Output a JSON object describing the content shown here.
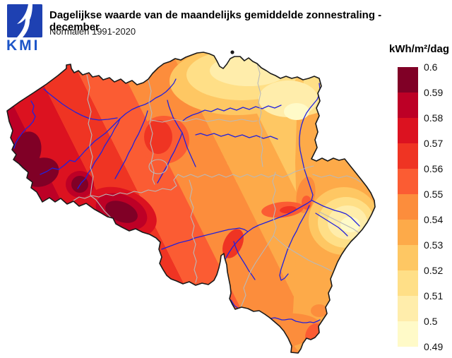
{
  "header": {
    "logo_text": "KMI",
    "title": "Dagelijkse waarde van de maandelijks gemiddelde zonnestraling - december",
    "subtitle": "Normalen 1991-2020"
  },
  "legend": {
    "title": "kWh/m²/dag",
    "tick_labels": [
      "0.6",
      "0.59",
      "0.58",
      "0.57",
      "0.56",
      "0.55",
      "0.54",
      "0.53",
      "0.52",
      "0.51",
      "0.5",
      "0.49"
    ],
    "band_colors_top_to_bottom": [
      "#800026",
      "#BD0026",
      "#DC1220",
      "#EF3423",
      "#FB5C33",
      "#FC8D3C",
      "#FDAA49",
      "#FEC763",
      "#FFDF87",
      "#FFEDAB",
      "#FFFAC8"
    ]
  },
  "map": {
    "country": "België",
    "outline_color": "#1A1A1A",
    "river_color": "#2121DD",
    "province_border_color": "#B9B9B9",
    "logo_square_color": "#1E41B2",
    "logo_text_color": "#1C55C8",
    "west_coast_max_band": "0.58–0.6",
    "northeast_min_band": "0.49–0.52"
  }
}
